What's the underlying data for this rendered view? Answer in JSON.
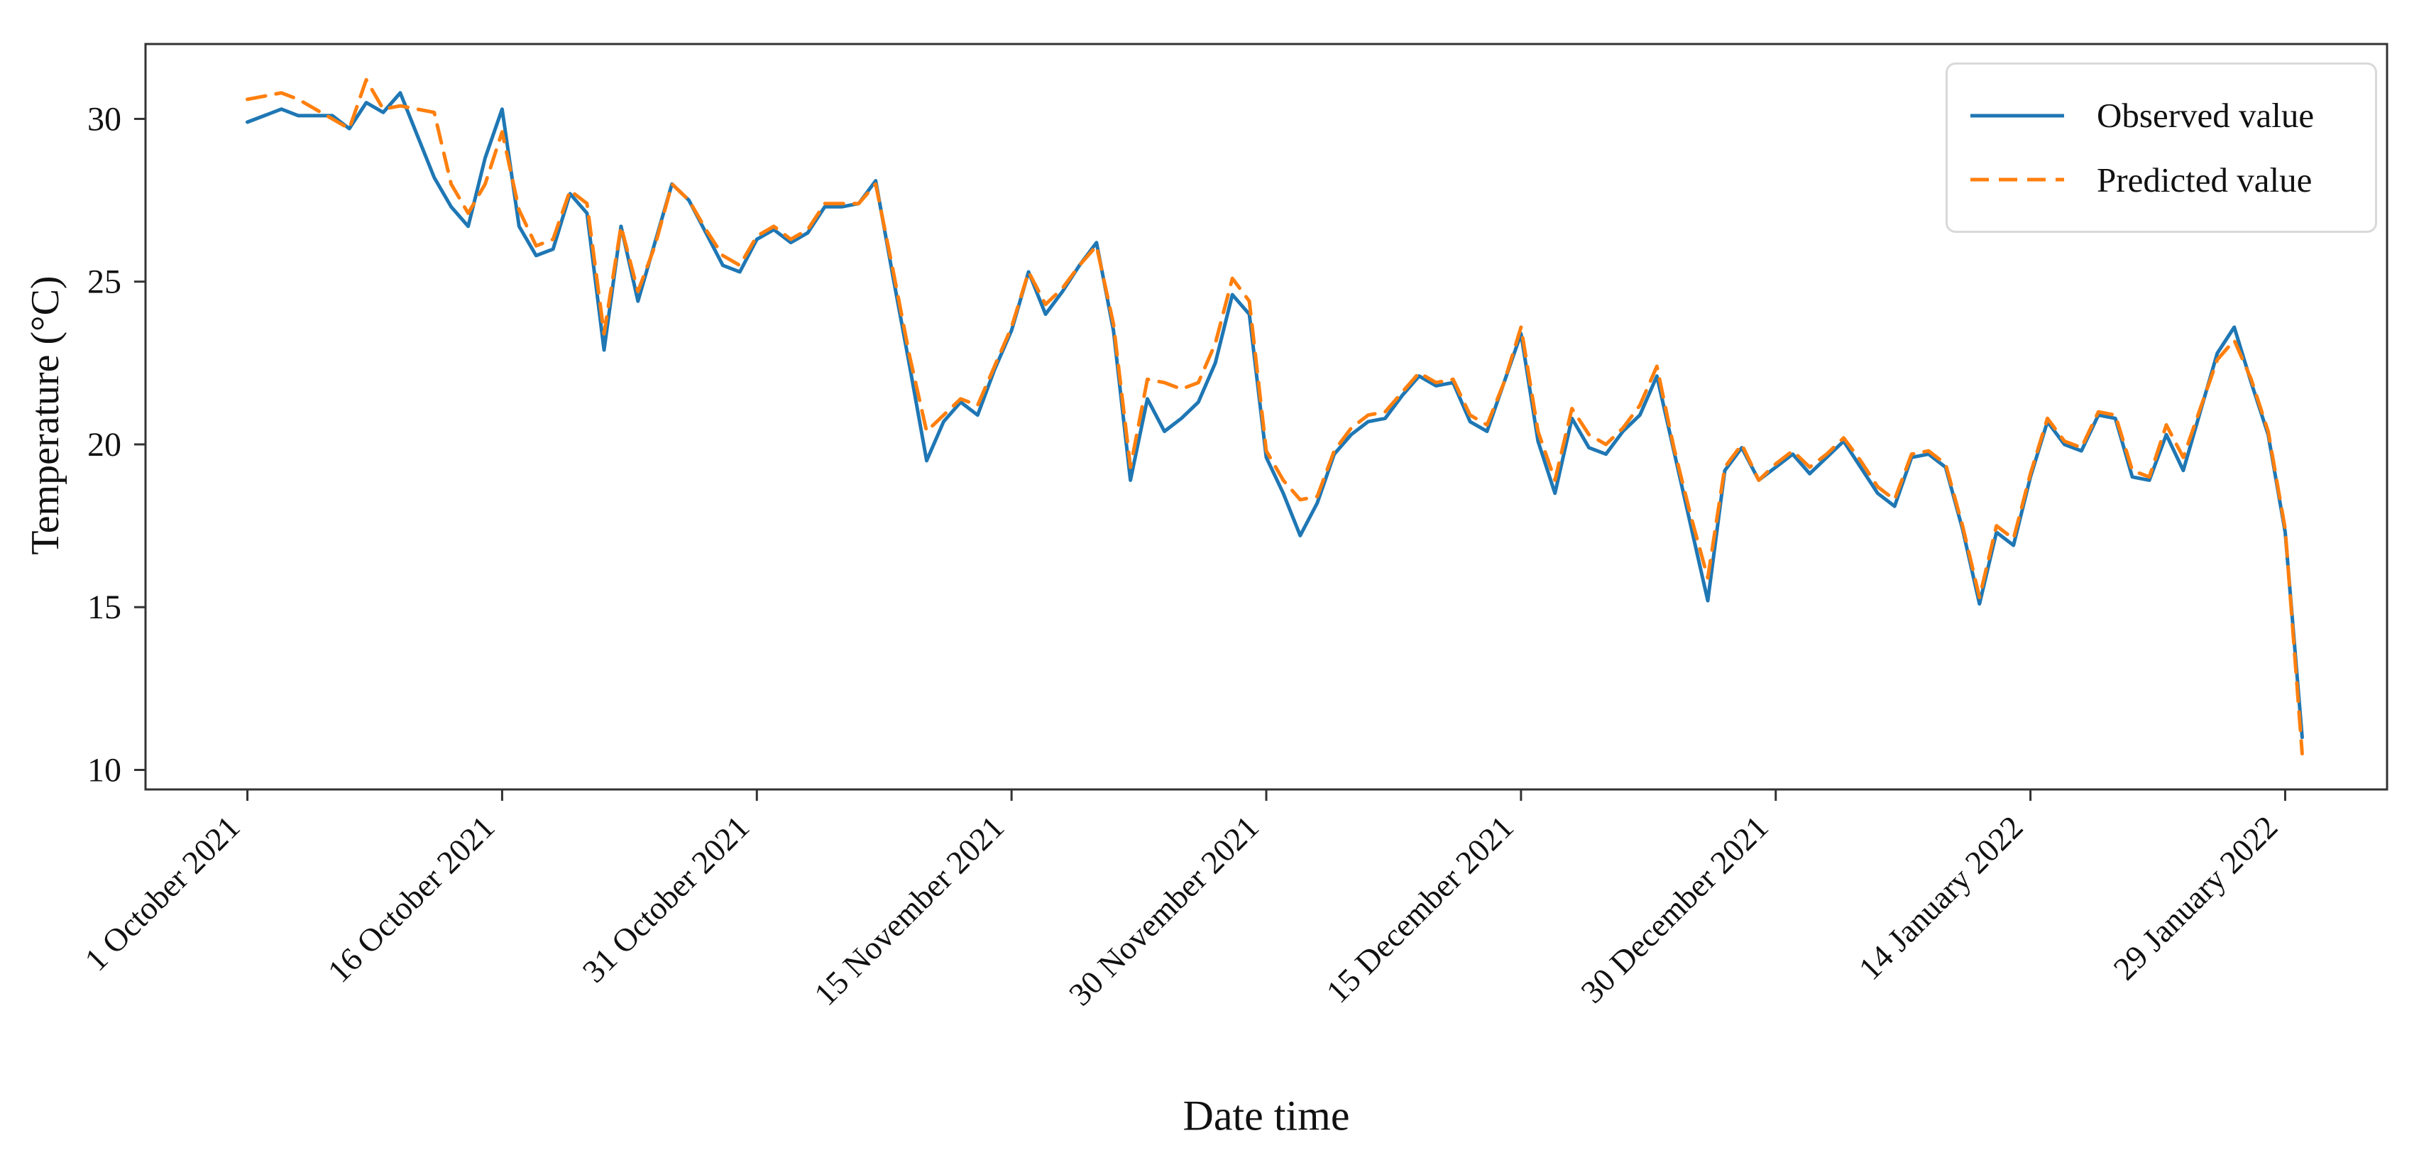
{
  "figure": {
    "background": "#ffffff"
  },
  "chart_data": {
    "type": "line",
    "title": "",
    "xlabel": "Date time",
    "ylabel": "Temperature (°C)",
    "grid": false,
    "legend_position": "upper right",
    "colors": {
      "frame": "#333333",
      "text": "#111111"
    },
    "ylim": [
      9.4,
      32.3
    ],
    "xlim": [
      -6,
      126
    ],
    "yticks": [
      10,
      15,
      20,
      25,
      30
    ],
    "x_axis": {
      "unit": "days since 1 October 2021",
      "n_points": 122,
      "start_date": "1 October 2021",
      "end_date": "30 January 2022",
      "tick_positions": [
        0,
        15,
        30,
        45,
        60,
        75,
        90,
        105,
        120
      ],
      "tick_labels": [
        "1 October 2021",
        "16 October 2021",
        "31 October 2021",
        "15 November 2021",
        "30 November 2021",
        "15 December 2021",
        "30 December 2021",
        "14 January 2022",
        "29 January 2022"
      ]
    },
    "series": [
      {
        "name": "Observed value",
        "color": "#1f77b4",
        "style": "solid",
        "values": [
          29.9,
          30.1,
          30.3,
          30.1,
          30.1,
          30.1,
          29.7,
          30.5,
          30.2,
          30.8,
          29.5,
          28.2,
          27.3,
          26.7,
          28.8,
          30.3,
          26.7,
          25.8,
          26.0,
          27.7,
          27.1,
          22.9,
          26.7,
          24.4,
          26.2,
          28.0,
          27.5,
          26.5,
          25.5,
          25.3,
          26.3,
          26.6,
          26.2,
          26.5,
          27.3,
          27.3,
          27.4,
          28.1,
          25.2,
          22.4,
          19.5,
          20.7,
          21.3,
          20.9,
          22.3,
          23.5,
          25.3,
          24.0,
          24.7,
          25.5,
          26.2,
          23.5,
          18.9,
          21.4,
          20.4,
          20.8,
          21.3,
          22.5,
          24.6,
          24.0,
          19.6,
          18.5,
          17.2,
          18.2,
          19.7,
          20.3,
          20.7,
          20.8,
          21.5,
          22.1,
          21.8,
          21.9,
          20.7,
          20.4,
          21.9,
          23.4,
          20.1,
          18.5,
          20.8,
          19.9,
          19.7,
          20.4,
          20.9,
          22.1,
          19.8,
          17.5,
          15.2,
          19.2,
          19.9,
          18.9,
          19.3,
          19.7,
          19.1,
          19.6,
          20.1,
          19.3,
          18.5,
          18.1,
          19.6,
          19.7,
          19.3,
          17.4,
          15.1,
          17.3,
          16.9,
          19.0,
          20.7,
          20.0,
          19.8,
          20.9,
          20.8,
          19.0,
          18.9,
          20.3,
          19.2,
          21.0,
          22.8,
          23.6,
          21.9,
          20.3,
          17.3,
          11.0
        ]
      },
      {
        "name": "Predicted value",
        "color": "#ff7f0e",
        "style": "dashed",
        "values": [
          30.6,
          30.7,
          30.8,
          30.6,
          30.3,
          30.0,
          29.7,
          31.2,
          30.3,
          30.4,
          30.3,
          30.2,
          28.0,
          27.1,
          28.0,
          29.6,
          27.2,
          26.1,
          26.3,
          27.8,
          27.4,
          23.4,
          26.7,
          24.7,
          26.1,
          28.0,
          27.5,
          26.6,
          25.8,
          25.5,
          26.4,
          26.7,
          26.3,
          26.6,
          27.4,
          27.4,
          27.4,
          28.0,
          25.4,
          22.7,
          20.4,
          20.9,
          21.4,
          21.2,
          22.4,
          23.6,
          25.3,
          24.3,
          24.8,
          25.5,
          26.1,
          23.7,
          19.3,
          22.0,
          21.9,
          21.7,
          21.9,
          23.1,
          25.1,
          24.4,
          19.8,
          18.9,
          18.3,
          18.4,
          19.8,
          20.5,
          20.9,
          21.0,
          21.6,
          22.2,
          21.9,
          22.0,
          20.9,
          20.6,
          21.9,
          23.6,
          20.4,
          18.9,
          21.1,
          20.3,
          20.0,
          20.5,
          21.2,
          22.4,
          19.9,
          17.8,
          15.9,
          19.3,
          20.0,
          18.9,
          19.4,
          19.8,
          19.3,
          19.7,
          20.2,
          19.5,
          18.7,
          18.3,
          19.7,
          19.8,
          19.4,
          17.5,
          15.3,
          17.5,
          17.1,
          19.1,
          20.8,
          20.1,
          19.9,
          21.0,
          20.9,
          19.2,
          19.0,
          20.6,
          19.6,
          21.1,
          22.6,
          23.2,
          22.0,
          20.4,
          17.4,
          10.5
        ]
      }
    ]
  }
}
